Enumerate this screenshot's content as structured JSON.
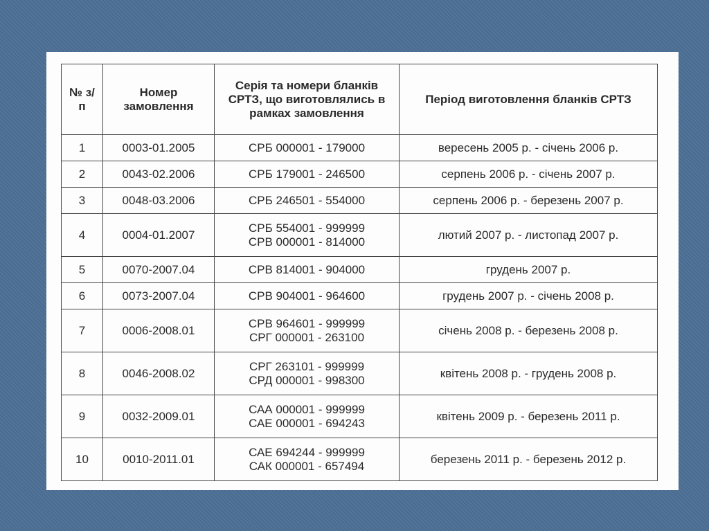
{
  "table": {
    "headers": [
      "№ з/п",
      "Номер замовлення",
      "Серія та номери бланків СРТЗ, що виготовлялись в рамках замовлення",
      "Період виготовлення бланків СРТЗ"
    ],
    "rows": [
      {
        "n": "1",
        "order": "0003-01.2005",
        "series": [
          "СРБ 000001 - 179000"
        ],
        "period": "вересень 2005 р. - січень 2006 р."
      },
      {
        "n": "2",
        "order": "0043-02.2006",
        "series": [
          "СРБ 179001 - 246500"
        ],
        "period": "серпень 2006 р. - січень 2007 р."
      },
      {
        "n": "3",
        "order": "0048-03.2006",
        "series": [
          "СРБ 246501 - 554000"
        ],
        "period": "серпень 2006 р. - березень 2007 р."
      },
      {
        "n": "4",
        "order": "0004-01.2007",
        "series": [
          "СРБ 554001 - 999999",
          "СРВ 000001 - 814000"
        ],
        "period": "лютий 2007 р. - листопад 2007 р."
      },
      {
        "n": "5",
        "order": "0070-2007.04",
        "series": [
          "СРВ 814001 - 904000"
        ],
        "period": "грудень 2007 р."
      },
      {
        "n": "6",
        "order": "0073-2007.04",
        "series": [
          "СРВ 904001 - 964600"
        ],
        "period": "грудень 2007 р. - січень 2008 р."
      },
      {
        "n": "7",
        "order": "0006-2008.01",
        "series": [
          "СРВ 964601 - 999999",
          "СРГ 000001 - 263100"
        ],
        "period": "січень 2008 р. - березень 2008 р."
      },
      {
        "n": "8",
        "order": "0046-2008.02",
        "series": [
          "СРГ 263101 - 999999",
          "СРД 000001 - 998300"
        ],
        "period": "квітень 2008 р. - грудень 2008 р."
      },
      {
        "n": "9",
        "order": "0032-2009.01",
        "series": [
          "САА 000001 - 999999",
          "САЕ 000001 - 694243"
        ],
        "period": "квітень 2009 р. - березень 2011 р."
      },
      {
        "n": "10",
        "order": "0010-2011.01",
        "series": [
          "САЕ 694244 - 999999",
          "САК 000001 - 657494"
        ],
        "period": "березень 2011 р. - березень 2012 р."
      }
    ]
  }
}
